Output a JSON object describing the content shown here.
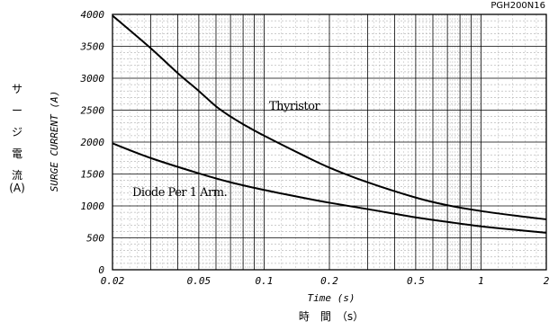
{
  "chart_data": {
    "type": "line",
    "model_code": "PGH200N16",
    "xlabel": "Time (s)",
    "xlabel_jp": "時　間　（s）",
    "ylabel": "SURGE CURRENT (A)",
    "ylabel_jp": [
      "サ",
      "ー",
      "ジ",
      "電",
      "流",
      "(A)"
    ],
    "x_scale": "log",
    "xlim": [
      0.02,
      2
    ],
    "ylim": [
      0,
      4000
    ],
    "x_ticks": [
      {
        "value": 0.02,
        "label": "0.02"
      },
      {
        "value": 0.05,
        "label": "0.05"
      },
      {
        "value": 0.1,
        "label": "0.1"
      },
      {
        "value": 0.2,
        "label": "0.2"
      },
      {
        "value": 0.5,
        "label": "0.5"
      },
      {
        "value": 1,
        "label": "1"
      },
      {
        "value": 2,
        "label": "2"
      }
    ],
    "y_ticks": [
      0,
      500,
      1000,
      1500,
      2000,
      2500,
      3000,
      3500,
      4000
    ],
    "grid": true,
    "series": [
      {
        "name": "Thyristor",
        "x": [
          0.02,
          0.03,
          0.04,
          0.05,
          0.06,
          0.07,
          0.08,
          0.1,
          0.15,
          0.2,
          0.3,
          0.5,
          0.7,
          1,
          1.5,
          2
        ],
        "y": [
          3980,
          3470,
          3080,
          2800,
          2560,
          2400,
          2280,
          2100,
          1800,
          1600,
          1370,
          1130,
          1010,
          920,
          840,
          790
        ]
      },
      {
        "name": "Diode Per 1 Arm.",
        "x": [
          0.02,
          0.03,
          0.05,
          0.07,
          0.1,
          0.15,
          0.2,
          0.3,
          0.5,
          0.7,
          1,
          1.5,
          2
        ],
        "y": [
          1980,
          1750,
          1510,
          1370,
          1250,
          1130,
          1050,
          950,
          820,
          750,
          680,
          620,
          580
        ]
      }
    ]
  }
}
